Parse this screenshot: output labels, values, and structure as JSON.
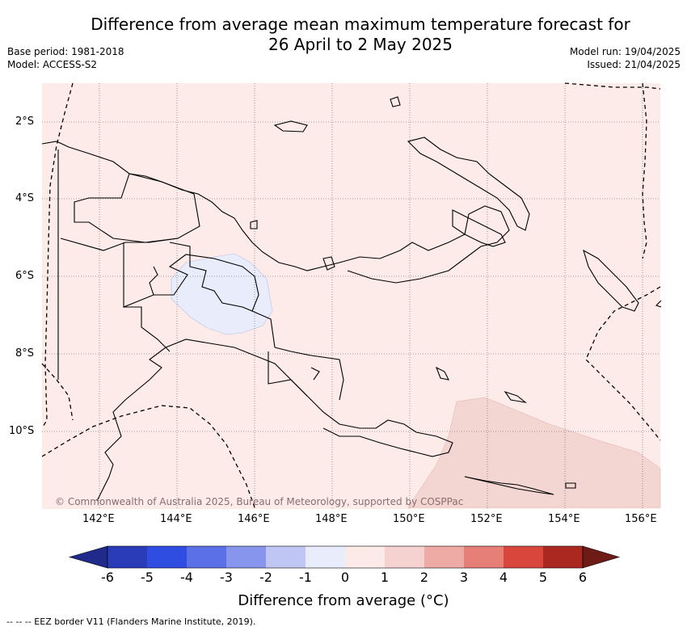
{
  "title_line1": "Difference from average mean maximum temperature forecast for",
  "title_line2": "26 April to 2 May 2025",
  "base_period": "Base period: 1981-2018",
  "model": "Model: ACCESS-S2",
  "model_run": "Model run: 19/04/2025",
  "issued": "Issued: 21/04/2025",
  "lat_labels": [
    "2°S",
    "4°S",
    "6°S",
    "8°S",
    "10°S"
  ],
  "lon_labels": [
    "142°E",
    "144°E",
    "146°E",
    "148°E",
    "150°E",
    "152°E",
    "154°E",
    "156°E"
  ],
  "copyright": "© Commonwealth of Australia 2025, Bureau of Meteorology, supported by COSPPac",
  "colorbar": {
    "title": "Difference from average (°C)",
    "tick_labels": [
      "-6",
      "-5",
      "-4",
      "-3",
      "-2",
      "-1",
      "0",
      "1",
      "2",
      "3",
      "4",
      "5",
      "6"
    ],
    "colors": [
      "#1f2a8a",
      "#2a3cb8",
      "#2f4de0",
      "#5b6fe6",
      "#8796ec",
      "#bfc6f4",
      "#e8ecfb",
      "#fceae8",
      "#f5d2cf",
      "#eeaba5",
      "#e57f77",
      "#d9463b",
      "#ab2820",
      "#6e1b16"
    ]
  },
  "map_colors": {
    "background": "#fcebe9",
    "cool_region": "#e8ecfb",
    "warm_region": "#f3d5d2"
  },
  "footer": "-- -- -- EEZ border V11 (Flanders Marine Institute, 2019)."
}
